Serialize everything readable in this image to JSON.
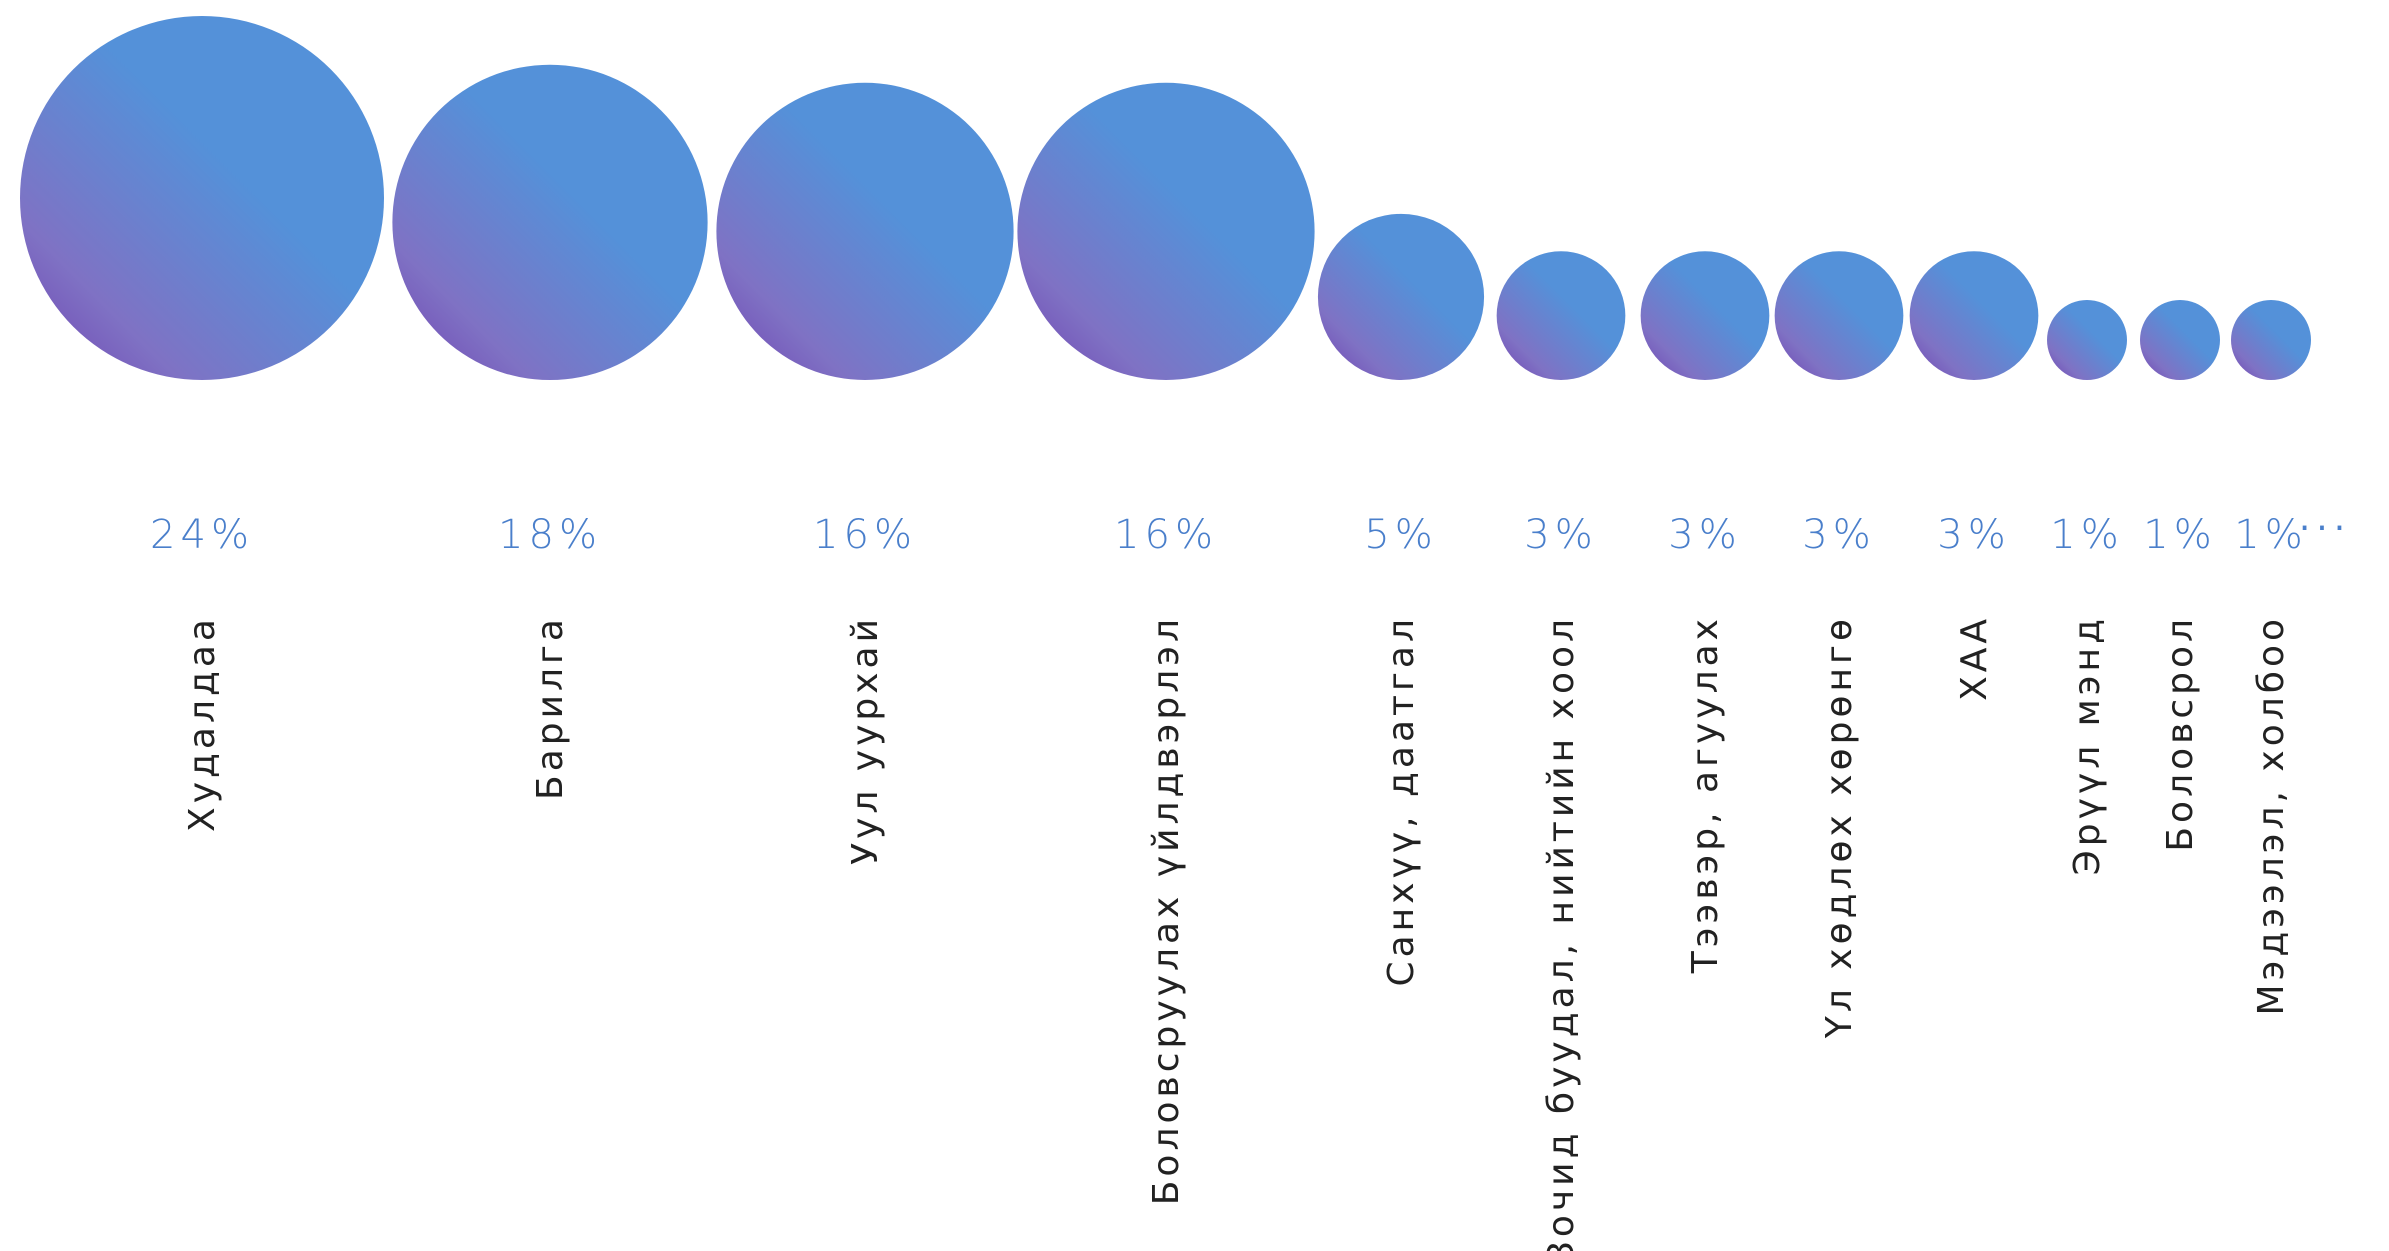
{
  "chart_data": {
    "type": "bubble",
    "categories": [
      "Худалдаа",
      "Барилга",
      "Уул уурхай",
      "Боловсруулах үйлдвэрлэл",
      "Санхүү, даатгал",
      "Зочид буудал, нийтийн хоол",
      "Тээвэр, агуулах",
      "Үл хөдлөх хөрөнгө",
      "ХАА",
      "Эрүүл мэнд",
      "Боловсрол",
      "Мэдээлэл, холбоо"
    ],
    "values": [
      24,
      18,
      16,
      16,
      5,
      3,
      3,
      3,
      3,
      1,
      1,
      1
    ],
    "value_labels": [
      "24%",
      "18%",
      "16%",
      "16%",
      "5%",
      "3%",
      "3%",
      "3%",
      "3%",
      "1%",
      "1%",
      "1%"
    ],
    "continuation": "...",
    "grid": false,
    "legend": "none"
  },
  "colors": {
    "gradient_start": "#5491d9",
    "gradient_mid": "#7f72c4",
    "gradient_end": "#6d3fb0",
    "percent_text": "#4a7fcb",
    "category_text": "#222222",
    "ellipsis_text": "#4a7fcb"
  }
}
